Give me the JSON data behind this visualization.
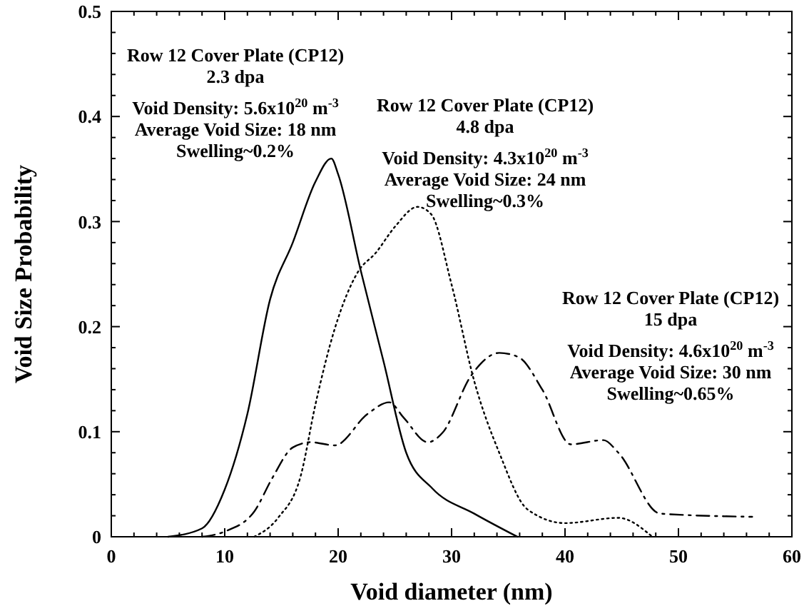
{
  "chart_data": {
    "type": "line",
    "xlabel": "Void diameter (nm)",
    "ylabel": "Void Size Probability",
    "xlim": [
      0,
      60
    ],
    "ylim": [
      0,
      0.5
    ],
    "xticks": [
      0,
      {
        "value": 2,
        "label": null
      },
      {
        "value": 4,
        "label": null
      },
      {
        "value": 6,
        "label": null
      },
      {
        "value": 8,
        "label": null
      },
      10,
      {
        "value": 12,
        "label": null
      },
      {
        "value": 14,
        "label": null
      },
      {
        "value": 16,
        "label": null
      },
      {
        "value": 18,
        "label": null
      },
      20,
      {
        "value": 22,
        "label": null
      },
      {
        "value": 24,
        "label": null
      },
      {
        "value": 26,
        "label": null
      },
      {
        "value": 28,
        "label": null
      },
      30,
      {
        "value": 32,
        "label": null
      },
      {
        "value": 34,
        "label": null
      },
      {
        "value": 36,
        "label": null
      },
      {
        "value": 38,
        "label": null
      },
      40,
      {
        "value": 42,
        "label": null
      },
      {
        "value": 44,
        "label": null
      },
      {
        "value": 46,
        "label": null
      },
      {
        "value": 48,
        "label": null
      },
      50,
      {
        "value": 52,
        "label": null
      },
      {
        "value": 54,
        "label": null
      },
      {
        "value": 56,
        "label": null
      },
      {
        "value": 58,
        "label": null
      },
      60
    ],
    "yticks": [
      0,
      {
        "value": 0.02,
        "label": null
      },
      {
        "value": 0.04,
        "label": null
      },
      {
        "value": 0.06,
        "label": null
      },
      {
        "value": 0.08,
        "label": null
      },
      0.1,
      {
        "value": 0.12,
        "label": null
      },
      {
        "value": 0.14,
        "label": null
      },
      {
        "value": 0.16,
        "label": null
      },
      {
        "value": 0.18,
        "label": null
      },
      0.2,
      {
        "value": 0.22,
        "label": null
      },
      {
        "value": 0.24,
        "label": null
      },
      {
        "value": 0.26,
        "label": null
      },
      {
        "value": 0.28,
        "label": null
      },
      0.3,
      {
        "value": 0.32,
        "label": null
      },
      {
        "value": 0.34,
        "label": null
      },
      {
        "value": 0.36,
        "label": null
      },
      {
        "value": 0.38,
        "label": null
      },
      0.4,
      {
        "value": 0.42,
        "label": null
      },
      {
        "value": 0.44,
        "label": null
      },
      {
        "value": 0.46,
        "label": null
      },
      {
        "value": 0.48,
        "label": null
      },
      0.5
    ],
    "grid": false,
    "marker": "none",
    "series": [
      {
        "color": "#000000",
        "line_style": "solid",
        "x": [
          5,
          8,
          10,
          12,
          14,
          16,
          18,
          19.4,
          20,
          22,
          24,
          26,
          28.3,
          32,
          35.8
        ],
        "values": [
          0,
          0.008,
          0.045,
          0.117,
          0.226,
          0.28,
          0.338,
          0.36,
          0.345,
          0.253,
          0.167,
          0.08,
          0.046,
          0.022,
          0
        ]
      },
      {
        "color": "#000000",
        "line_style": "dotted",
        "x": [
          12.6,
          14.7,
          16.7,
          18,
          19.7,
          21.8,
          23.3,
          25,
          27,
          28.2,
          30,
          32,
          34.2,
          36.7,
          40,
          44.7,
          47.7
        ],
        "values": [
          0,
          0.018,
          0.058,
          0.126,
          0.198,
          0.253,
          0.27,
          0.295,
          0.314,
          0.307,
          0.24,
          0.148,
          0.08,
          0.026,
          0.013,
          0.018,
          0
        ]
      },
      {
        "color": "#000000",
        "line_style": "dashdot",
        "x": [
          8,
          10,
          12.6,
          14.2,
          16,
          17.6,
          19.7,
          22.6,
          24.5,
          25.8,
          27.9,
          29.2,
          31.7,
          34.2,
          35.9,
          38,
          40.5,
          43.4,
          44.7,
          48.4,
          56.5
        ],
        "values": [
          0,
          0.005,
          0.024,
          0.056,
          0.085,
          0.09,
          0.087,
          0.117,
          0.128,
          0.113,
          0.09,
          0.099,
          0.153,
          0.175,
          0.171,
          0.14,
          0.088,
          0.092,
          0.08,
          0.022,
          0.019
        ]
      }
    ],
    "annotations": [
      "Row 12 Cover Plate (CP12)\n2.3 dpa\nVoid Density: 5.6x10$^{20}$ m$^{-3}$\nAverage Void Size: 18 nm\nSwelling~0.2%",
      "Row 12 Cover Plate (CP12)\n4.8 dpa\nVoid Density: 4.3x10$^{20}$ m$^{-3}$\nAverage Void Size: 24 nm\nSwelling~0.3%",
      "Row 12 Cover Plate (CP12)\n15 dpa\nVoid Density: 4.6x10$^{20}$ m$^{-3}$\nAverage Void Size: 30 nm\nSwelling~0.65%"
    ]
  }
}
